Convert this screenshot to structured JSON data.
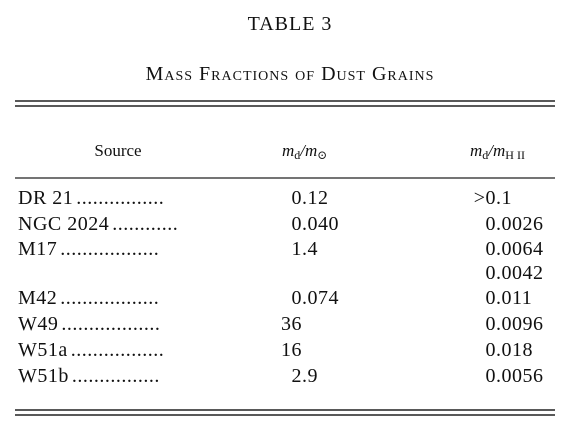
{
  "title": "TABLE 3",
  "subtitle": "Mass Fractions of Dust Grains",
  "header": {
    "source": "Source",
    "col1": [
      "m",
      "d",
      "/m",
      "⊙"
    ],
    "col2": [
      "m",
      "d",
      "/m",
      "H II"
    ]
  },
  "table": {
    "rows": [
      [
        "DR 21",
        "0.12",
        ">0.1"
      ],
      [
        "NGC 2024",
        "0.040",
        "0.0026"
      ],
      [
        "M17",
        "1.4",
        "0.0064"
      ],
      [
        null,
        null,
        "0.0042"
      ],
      [
        "M42",
        "0.074",
        "0.011"
      ],
      [
        "W49",
        "36",
        "0.0096"
      ],
      [
        "W51a",
        "16",
        "0.018"
      ],
      [
        "W51b",
        "2.9",
        "0.0056"
      ]
    ]
  }
}
